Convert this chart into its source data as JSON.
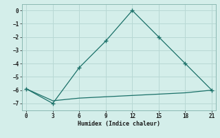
{
  "xlabel": "Humidex (Indice chaleur)",
  "bg_color": "#d4eeea",
  "grid_color": "#b8d8d4",
  "line_color": "#1a7068",
  "line1_x": [
    0,
    3,
    6,
    9,
    12,
    15,
    18,
    21
  ],
  "line1_y": [
    -5.9,
    -7.0,
    -4.3,
    -2.3,
    0.0,
    -2.0,
    -4.0,
    -6.0
  ],
  "line2_x": [
    0,
    3,
    6,
    9,
    12,
    15,
    18,
    21
  ],
  "line2_y": [
    -5.9,
    -6.8,
    -6.6,
    -6.5,
    -6.4,
    -6.3,
    -6.2,
    -6.0
  ],
  "xlim": [
    -0.5,
    21.5
  ],
  "ylim": [
    -7.5,
    0.5
  ],
  "xticks": [
    0,
    3,
    6,
    9,
    12,
    15,
    18,
    21
  ],
  "yticks": [
    0,
    -1,
    -2,
    -3,
    -4,
    -5,
    -6,
    -7
  ]
}
